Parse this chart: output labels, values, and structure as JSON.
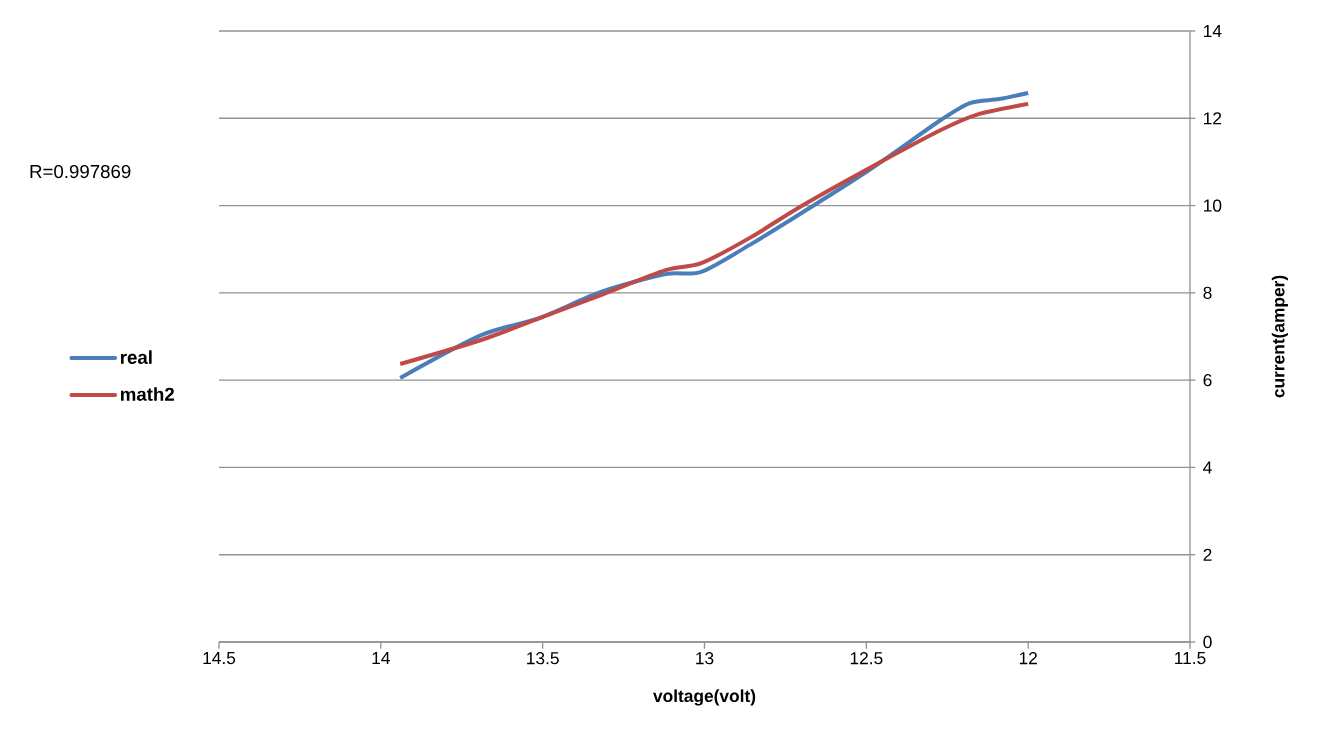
{
  "chart_data": {
    "type": "line",
    "xlabel": "voltage(volt)",
    "ylabel": "current(amper)",
    "annotations": [
      "R=0.997869"
    ],
    "xlim": [
      14.5,
      11.5
    ],
    "xticks": [
      14.5,
      14,
      13.5,
      13,
      12.5,
      12,
      11.5
    ],
    "ylim": [
      0,
      14
    ],
    "yticks": [
      0,
      2,
      4,
      6,
      8,
      10,
      12,
      14
    ],
    "grid": "y",
    "legend": "left",
    "marker": "none",
    "line_style": "solid",
    "series": [
      {
        "name": "real",
        "color": "#4a7ebb",
        "x": [
          13.94,
          13.69,
          13.51,
          13.32,
          13.12,
          13.01,
          12.86,
          12.7,
          12.49,
          12.27,
          12.18,
          12.09,
          12.0
        ],
        "values": [
          6.05,
          7.03,
          7.42,
          8.02,
          8.43,
          8.48,
          9.1,
          9.83,
          10.82,
          11.96,
          12.35,
          12.44,
          12.58
        ]
      },
      {
        "name": "math2",
        "color": "#be4b48",
        "x": [
          13.94,
          13.69,
          13.51,
          13.32,
          13.12,
          13.01,
          12.86,
          12.7,
          12.49,
          12.27,
          12.16,
          12.0
        ],
        "values": [
          6.37,
          6.92,
          7.42,
          7.95,
          8.52,
          8.68,
          9.26,
          9.99,
          10.86,
          11.73,
          12.08,
          12.33
        ]
      }
    ]
  }
}
